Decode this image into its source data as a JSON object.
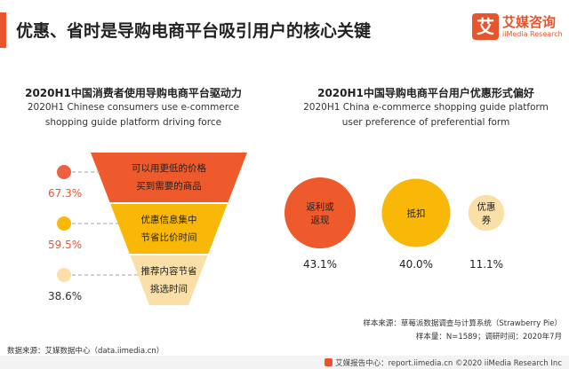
{
  "header": {
    "title": "优惠、省时是导购电商平台吸引用户的核心关键",
    "accent_color": "#e8542b"
  },
  "logo": {
    "mark": "艾",
    "name_cn": "艾媒咨询",
    "name_en": "iiMedia Research"
  },
  "left_panel": {
    "title_cn": "2020H1中国消费者使用导购电商平台驱动力",
    "title_en_line1": "2020H1 Chinese consumers use e-commerce",
    "title_en_line2": "shopping guide platform driving force"
  },
  "right_panel": {
    "title_cn": "2020H1中国导购电商平台用户优惠形式偏好",
    "title_en_line1": "2020H1 China e-commerce shopping guide platform",
    "title_en_line2": "user preference of preferential form"
  },
  "chart_data": [
    {
      "type": "funnel",
      "categories": [
        [
          "可以用更低的价格",
          "买到需要的商品"
        ],
        [
          "优惠信息集中",
          "节省比价时间"
        ],
        [
          "推荐内容节省",
          "挑选时间"
        ]
      ],
      "values": [
        67.3,
        59.5,
        38.6
      ],
      "value_labels": [
        "67.3%",
        "59.5%",
        "38.6%"
      ],
      "colors": [
        "#ee5a2c",
        "#f9b808",
        "#fae0a8"
      ],
      "dot_colors": [
        "#ee6040",
        "#f9b808",
        "#fae0a8"
      ],
      "label_colors": [
        "#e8542b",
        "#e8542b",
        "#333333"
      ]
    },
    {
      "type": "bubble",
      "categories": [
        [
          "返利或",
          "返现"
        ],
        [
          "抵扣"
        ],
        [
          "优惠",
          "券"
        ]
      ],
      "values": [
        43.1,
        40.0,
        11.1
      ],
      "value_labels": [
        "43.1%",
        "40.0%",
        "11.1%"
      ],
      "colors": [
        "#ee5a2c",
        "#f9b808",
        "#fae0a8"
      ]
    }
  ],
  "sources": {
    "sample_source": "样本来源：草莓派数据调查与计算系统（Strawberry Pie）",
    "sample_size": "样本量：N=1589；调研时间：2020年7月",
    "data_source": "数据来源：艾媒数据中心（data.iimedia.cn）"
  },
  "footer": {
    "text": "艾媒报告中心：report.iimedia.cn  ©2020  iiMedia Research Inc"
  }
}
